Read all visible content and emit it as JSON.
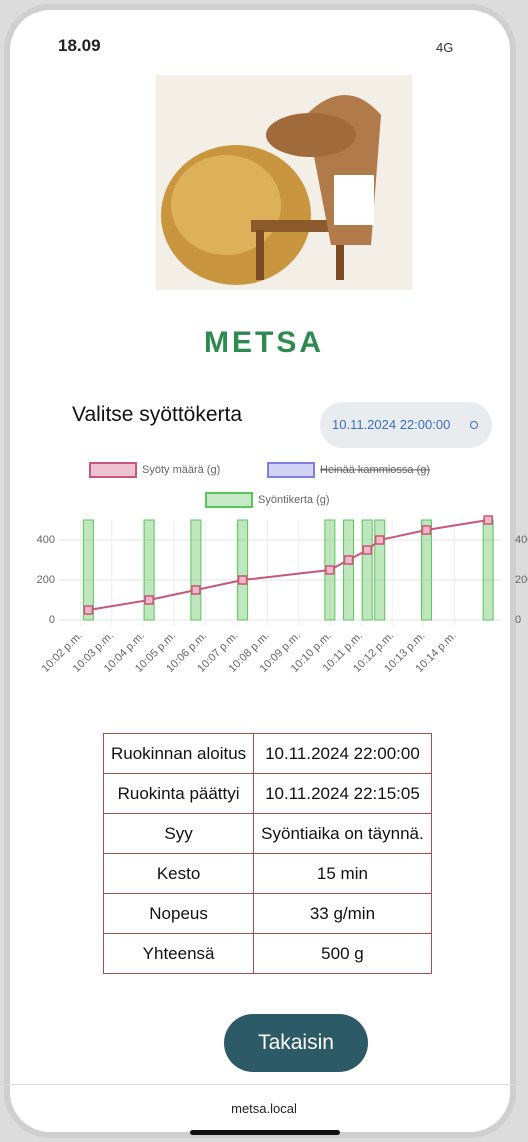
{
  "status_bar": {
    "time": "18.09",
    "network": "4G"
  },
  "title": "METSA",
  "select": {
    "label": "Valitse syöttökerta",
    "value": "10.11.2024 22:00:00"
  },
  "chart_data": {
    "type": "bar",
    "xticks": [
      {
        "value": 2,
        "label": "10:02 p.m."
      },
      {
        "value": 3,
        "label": "10:03 p.m."
      },
      {
        "value": 4,
        "label": "10:04 p.m."
      },
      {
        "value": 5,
        "label": "10:05 p.m."
      },
      {
        "value": 6,
        "label": "10:06 p.m."
      },
      {
        "value": 7,
        "label": "10:07 p.m."
      },
      {
        "value": 8,
        "label": "10:08 p.m."
      },
      {
        "value": 9,
        "label": "10:09 p.m."
      },
      {
        "value": 10,
        "label": "10:10 p.m."
      },
      {
        "value": 11,
        "label": "10:11 p.m."
      },
      {
        "value": 12,
        "label": "10:12 p.m."
      },
      {
        "value": 13,
        "label": "10:13 p.m."
      },
      {
        "value": 14,
        "label": "10:14 p.m."
      }
    ],
    "xlim": [
      1.5,
      15.3
    ],
    "x": [
      2.25,
      4.2,
      5.7,
      7.2,
      10.0,
      10.6,
      11.2,
      11.6,
      13.1,
      15.08
    ],
    "ylim": [
      0,
      500
    ],
    "yticks": [
      0,
      200,
      400
    ],
    "y2lim": [
      0,
      500
    ],
    "y2ticks": [
      0,
      200,
      400
    ],
    "grid": true,
    "series": [
      {
        "name": "Syöty määrä (g)",
        "type": "line",
        "color": "#c9577a",
        "values": [
          50,
          100,
          150,
          200,
          250,
          300,
          350,
          400,
          450,
          500
        ]
      },
      {
        "name": "Heinää kammiossa (g)",
        "type": "line",
        "color": "#8080e0",
        "hidden": true,
        "values": [
          null,
          null,
          null,
          null,
          null,
          null,
          null,
          null,
          null,
          null
        ]
      },
      {
        "name": "Syöntikerta (g)",
        "type": "bar",
        "axis": "y2",
        "color": "#5cc45c",
        "values": [
          500,
          500,
          500,
          500,
          500,
          500,
          500,
          500,
          500,
          500
        ]
      }
    ]
  },
  "table": {
    "rows": [
      [
        "Ruokinnan aloitus",
        "10.11.2024 22:00:00"
      ],
      [
        "Ruokinta päättyi",
        "10.11.2024 22:15:05"
      ],
      [
        "Syy",
        "Syöntiaika on täynnä."
      ],
      [
        "Kesto",
        "15 min"
      ],
      [
        "Nopeus",
        "33 g/min"
      ],
      [
        "Yhteensä",
        "500 g"
      ]
    ]
  },
  "button": "Takaisin",
  "url": "metsa.local"
}
